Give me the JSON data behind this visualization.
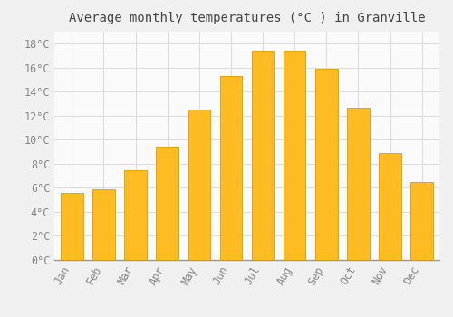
{
  "title": "Average monthly temperatures (°C ) in Granville",
  "months": [
    "Jan",
    "Feb",
    "Mar",
    "Apr",
    "May",
    "Jun",
    "Jul",
    "Aug",
    "Sep",
    "Oct",
    "Nov",
    "Dec"
  ],
  "values": [
    5.6,
    5.9,
    7.5,
    9.4,
    12.5,
    15.3,
    17.4,
    17.4,
    15.9,
    12.7,
    8.9,
    6.5
  ],
  "bar_color": "#FFBB22",
  "bar_edge_color": "#E8A500",
  "background_color": "#F0F0F0",
  "plot_bg_color": "#FAFAFA",
  "grid_color": "#DDDDDD",
  "tick_label_color": "#888888",
  "title_color": "#444444",
  "ylim": [
    0,
    19
  ],
  "yticks": [
    0,
    2,
    4,
    6,
    8,
    10,
    12,
    14,
    16,
    18
  ],
  "title_fontsize": 10,
  "tick_fontsize": 8.5
}
